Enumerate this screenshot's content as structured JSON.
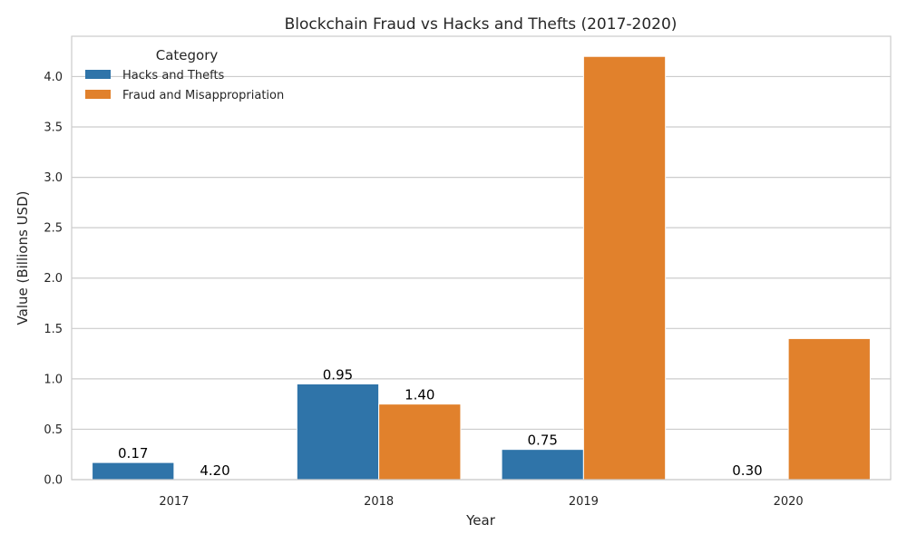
{
  "chart_data": {
    "type": "bar",
    "title": "Blockchain Fraud vs Hacks and Thefts (2017-2020)",
    "xlabel": "Year",
    "ylabel": "Value (Billions USD)",
    "categories": [
      "2017",
      "2018",
      "2019",
      "2020"
    ],
    "series": [
      {
        "name": "Hacks and Thefts",
        "color": "#2f74a9",
        "values": [
          0.17,
          0.95,
          0.3,
          0
        ]
      },
      {
        "name": "Fraud and Misappropriation",
        "color": "#e1812c",
        "values": [
          0,
          0.75,
          4.2,
          1.4
        ]
      }
    ],
    "ylim": [
      0,
      4.4
    ],
    "yticks": [
      "0.0",
      "0.5",
      "1.0",
      "1.5",
      "2.0",
      "2.5",
      "3.0",
      "3.5",
      "4.0"
    ],
    "legend_title": "Category",
    "legend_position": "top-left",
    "grid": "horizontal",
    "data_labels": [
      "0.17",
      "0.95",
      "0.75",
      "0.30",
      "4.20",
      "1.40"
    ]
  }
}
